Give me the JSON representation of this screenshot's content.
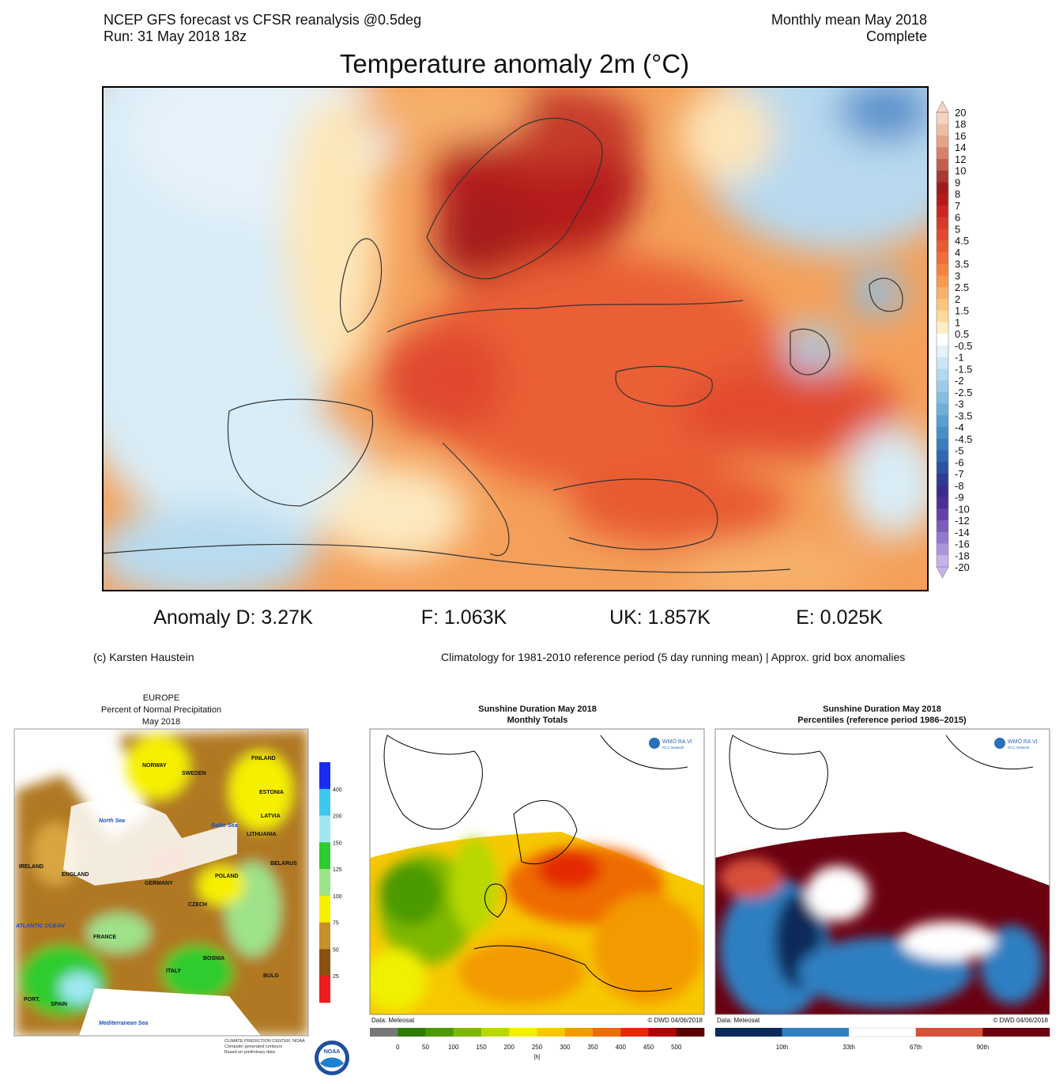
{
  "main_map": {
    "header_left": [
      "NCEP GFS forecast vs CFSR reanalysis @0.5deg",
      "Run: 31 May 2018 18z"
    ],
    "header_right": [
      "Monthly mean May 2018",
      "Complete"
    ],
    "title": "Temperature anomaly 2m (°C)",
    "colorbar": {
      "labels": [
        "20",
        "18",
        "16",
        "14",
        "12",
        "10",
        "9",
        "8",
        "7",
        "6",
        "5",
        "4.5",
        "4",
        "3.5",
        "3",
        "2.5",
        "2",
        "1.5",
        "1",
        "0.5",
        "-0.5",
        "-1",
        "-1.5",
        "-2",
        "-2.5",
        "-3",
        "-3.5",
        "-4",
        "-4.5",
        "-5",
        "-6",
        "-7",
        "-8",
        "-9",
        "-10",
        "-12",
        "-14",
        "-16",
        "-18",
        "-20"
      ],
      "colors": [
        "#f6d3c0",
        "#eebda3",
        "#e3a487",
        "#d4836a",
        "#c0604f",
        "#a83a33",
        "#9e1c1f",
        "#b31b1b",
        "#c92724",
        "#d63a2a",
        "#e04a2e",
        "#e85a33",
        "#ee6d3c",
        "#f28345",
        "#f59a55",
        "#f8b06a",
        "#fbc580",
        "#fdda9c",
        "#fdeec3",
        "#ffffff",
        "#e3f2fb",
        "#cbe6f6",
        "#b3d9f0",
        "#9ccbe9",
        "#85bde2",
        "#6eaed9",
        "#589fd0",
        "#4690c7",
        "#3a7dbd",
        "#3268b0",
        "#2d51a1",
        "#2f3b93",
        "#3a2c8c",
        "#4c2e96",
        "#6341a8",
        "#7b5cbd",
        "#9478cf",
        "#ad95de",
        "#c6b3ec"
      ]
    },
    "anomalies": [
      "Anomaly D: 3.27K",
      "F: 1.063K",
      "UK: 1.857K",
      "E: 0.025K"
    ],
    "credit": "(c) Karsten Haustein",
    "footnote": "Climatology for 1981-2010 reference period (5 day running mean) | Approx. grid box anomalies"
  },
  "precip_map": {
    "title": [
      "EUROPE",
      "Percent of Normal Precipitation",
      "May 2018"
    ],
    "colorbar": {
      "labels": [
        "400",
        "200",
        "150",
        "125",
        "100",
        "75",
        "50",
        "25"
      ],
      "colors": [
        "#1a2cf0",
        "#3ec8ef",
        "#9fe8f2",
        "#2ecc2e",
        "#9ee28a",
        "#f6f000",
        "#c8902a",
        "#8a5210",
        "#ee1c1c"
      ]
    },
    "map_labels": [
      "NORWAY",
      "SWEDEN",
      "FINLAND",
      "ESTONIA",
      "LATVIA",
      "LITHUANIA",
      "BELARUS",
      "POLAND",
      "GERMANY",
      "CZECH",
      "IRELAND",
      "ENGLAND",
      "FRANCE",
      "SPAIN",
      "PORT.",
      "ITALY",
      "BOSNIA",
      "BULG",
      "North Sea",
      "Baltic Sea",
      "ATLANTIC OCEAN",
      "Mediterranean Sea"
    ],
    "source": [
      "CLIMATE PREDICTION CENTER, NOAA",
      "Computer generated contours",
      "Based on preliminary data"
    ],
    "logo": "NOAA"
  },
  "sunshine_totals": {
    "title": [
      "Sunshine Duration May 2018",
      "Monthly Totals"
    ],
    "data_note": "Data: Meteosat",
    "copyright": "© DWD 04/06/2018",
    "logo": [
      "WMO RA VI",
      "RCC Network"
    ],
    "colorbar": {
      "labels": [
        "0",
        "50",
        "100",
        "150",
        "200",
        "250",
        "300",
        "350",
        "400",
        "450",
        "500"
      ],
      "unit": "[h]",
      "colors": [
        "#777777",
        "#2f7d00",
        "#4b9a00",
        "#7fb800",
        "#b8d800",
        "#f0f000",
        "#f7c800",
        "#f39a00",
        "#ef6a00",
        "#e32a00",
        "#b00000",
        "#5a0000"
      ]
    }
  },
  "sunshine_percentiles": {
    "title": [
      "Sunshine Duration May 2018",
      "Percentiles (reference period 1986–2015)"
    ],
    "data_note": "Data: Meteosat",
    "copyright": "© DWD 04/06/2018",
    "logo": [
      "WMO RA VI",
      "RCC Network"
    ],
    "colorbar": {
      "labels": [
        "10th",
        "33th",
        "67th",
        "90th"
      ],
      "colors": [
        "#0a2a5a",
        "#2f7fc1",
        "#ffffff",
        "#d9503a",
        "#6b0010"
      ]
    }
  }
}
